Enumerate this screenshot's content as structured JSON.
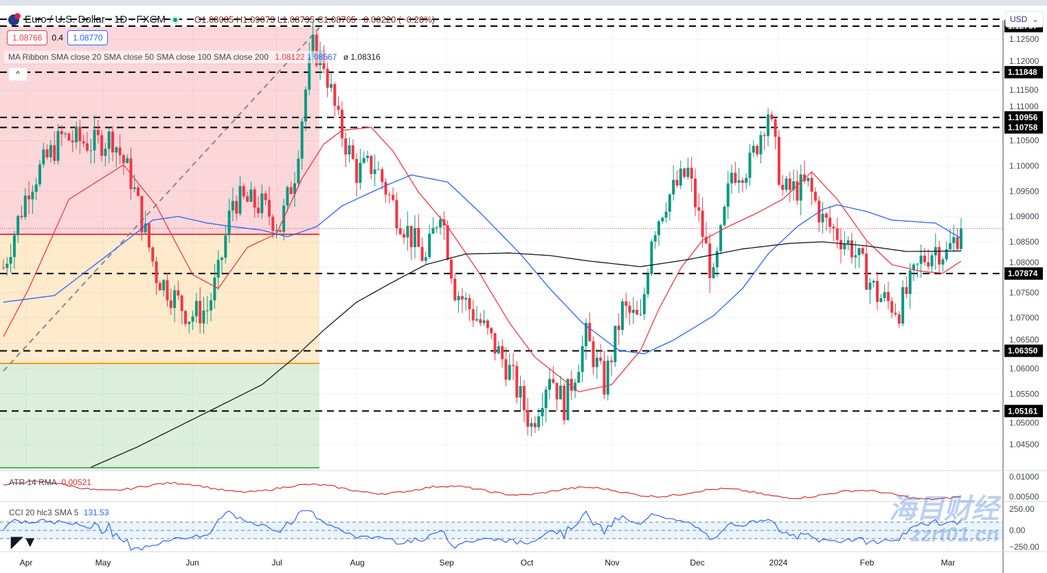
{
  "header": {
    "symbol": "Euro / U.S. Dollar · 1D · FXCM",
    "open": "O1.08985",
    "high": "H1.09073",
    "low": "L1.08735",
    "close": "C1.08765",
    "change": "−0.00220 (−0.20%)"
  },
  "order_boxes": {
    "sell": "1.08766",
    "spread": "0.4",
    "buy": "1.08770"
  },
  "ribbon": {
    "label": "MA Ribbon SMA close 20 SMA close 50 SMA close 100 SMA close 200",
    "v1": "1.08122",
    "v2": "1.08567",
    "v3": "ø 1.08316"
  },
  "currency": "USD",
  "atr": {
    "label": "ATR 14 RMA",
    "value": "0.00521"
  },
  "cci": {
    "label": "CCI 20 hlc3 SMA 5",
    "value": "131.53"
  },
  "watermark": {
    "line1": "海目财经",
    "line2": "zzrt01.cn"
  },
  "colors": {
    "up": "#089981",
    "down": "#f23645",
    "sma20": "#f23645",
    "sma50": "#2962ff",
    "sma200": "#131722"
  },
  "chart_data": {
    "type": "candlestick",
    "price_axis": {
      "min": 1.045,
      "max": 1.125,
      "ticks": [
        "1.12500",
        "1.12000",
        "1.11500",
        "1.11000",
        "1.10500",
        "1.10000",
        "1.09500",
        "1.09000",
        "1.08500",
        "1.08000",
        "1.07500",
        "1.07000",
        "1.06500",
        "1.06000",
        "1.05500",
        "1.05000",
        "1.04500"
      ]
    },
    "time_axis": [
      "Apr",
      "May",
      "Jun",
      "Jul",
      "Aug",
      "Sep",
      "Oct",
      "Nov",
      "Dec",
      "2024",
      "Feb",
      "Mar"
    ],
    "bars": 264,
    "last_price": 1.08765,
    "levels": [
      "1.12757",
      "1.11848",
      "1.10956",
      "1.10758",
      "1.07874",
      "1.06350",
      "1.05161"
    ],
    "fib_levels": [
      1.0865,
      1.061,
      1.0404
    ],
    "close_path": [
      [
        0,
        1.0799
      ],
      [
        7,
        1.0961
      ],
      [
        16,
        1.1056
      ],
      [
        25,
        1.1043
      ],
      [
        30,
        1.1056
      ],
      [
        35,
        1.0975
      ],
      [
        42,
        1.0785
      ],
      [
        51,
        1.0704
      ],
      [
        56,
        1.0717
      ],
      [
        59,
        1.0785
      ],
      [
        63,
        1.0934
      ],
      [
        71,
        1.0921
      ],
      [
        76,
        1.088
      ],
      [
        80,
        1.0988
      ],
      [
        83,
        1.1151
      ],
      [
        85,
        1.1232
      ],
      [
        88,
        1.1205
      ],
      [
        92,
        1.1083
      ],
      [
        97,
        1.0988
      ],
      [
        102,
        1.1002
      ],
      [
        108,
        1.0907
      ],
      [
        116,
        1.0812
      ],
      [
        120,
        1.0921
      ],
      [
        124,
        1.0758
      ],
      [
        131,
        1.069
      ],
      [
        139,
        1.0595
      ],
      [
        145,
        1.0487
      ],
      [
        150,
        1.0595
      ],
      [
        154,
        1.0527
      ],
      [
        160,
        1.0663
      ],
      [
        165,
        1.0568
      ],
      [
        170,
        1.0717
      ],
      [
        175,
        1.069
      ],
      [
        178,
        1.0866
      ],
      [
        182,
        1.0934
      ],
      [
        188,
        1.0988
      ],
      [
        192,
        1.0866
      ],
      [
        195,
        1.0771
      ],
      [
        200,
        1.0988
      ],
      [
        205,
        1.1002
      ],
      [
        210,
        1.111
      ],
      [
        214,
        1.0948
      ],
      [
        221,
        1.0961
      ],
      [
        225,
        1.0893
      ],
      [
        233,
        1.0839
      ],
      [
        240,
        1.0744
      ],
      [
        246,
        1.0717
      ],
      [
        252,
        1.0812
      ],
      [
        256,
        1.0839
      ],
      [
        259,
        1.0826
      ],
      [
        263,
        1.0877
      ]
    ],
    "sma20": [
      [
        0,
        1.0663
      ],
      [
        7,
        1.0758
      ],
      [
        18,
        1.0934
      ],
      [
        33,
        1.1002
      ],
      [
        42,
        1.0921
      ],
      [
        52,
        1.0785
      ],
      [
        59,
        1.0758
      ],
      [
        67,
        1.0839
      ],
      [
        75,
        1.0866
      ],
      [
        82,
        1.0975
      ],
      [
        88,
        1.1043
      ],
      [
        93,
        1.107
      ],
      [
        101,
        1.1076
      ],
      [
        107,
        1.1029
      ],
      [
        114,
        1.0948
      ],
      [
        122,
        1.088
      ],
      [
        131,
        1.0785
      ],
      [
        139,
        1.069
      ],
      [
        146,
        1.0622
      ],
      [
        158,
        1.0554
      ],
      [
        167,
        1.0568
      ],
      [
        175,
        1.0636
      ],
      [
        180,
        1.0717
      ],
      [
        186,
        1.0798
      ],
      [
        192,
        1.0853
      ],
      [
        199,
        1.088
      ],
      [
        207,
        1.0907
      ],
      [
        214,
        1.0934
      ],
      [
        222,
        1.0988
      ],
      [
        229,
        1.0934
      ],
      [
        237,
        1.0853
      ],
      [
        244,
        1.0805
      ],
      [
        252,
        1.0792
      ],
      [
        258,
        1.0788
      ],
      [
        263,
        1.0812
      ]
    ],
    "sma50": [
      [
        0,
        1.0731
      ],
      [
        14,
        1.0744
      ],
      [
        29,
        1.0826
      ],
      [
        41,
        1.0893
      ],
      [
        48,
        1.09
      ],
      [
        56,
        1.0887
      ],
      [
        63,
        1.088
      ],
      [
        71,
        1.0873
      ],
      [
        78,
        1.086
      ],
      [
        86,
        1.088
      ],
      [
        93,
        1.0921
      ],
      [
        105,
        1.0961
      ],
      [
        112,
        1.0982
      ],
      [
        122,
        1.0968
      ],
      [
        131,
        1.0907
      ],
      [
        142,
        1.0826
      ],
      [
        150,
        1.0758
      ],
      [
        159,
        1.069
      ],
      [
        169,
        1.0636
      ],
      [
        176,
        1.0629
      ],
      [
        184,
        1.0656
      ],
      [
        195,
        1.0704
      ],
      [
        203,
        1.0758
      ],
      [
        210,
        1.0826
      ],
      [
        218,
        1.088
      ],
      [
        225,
        1.0914
      ],
      [
        229,
        1.0923
      ],
      [
        237,
        1.091
      ],
      [
        244,
        1.0893
      ],
      [
        256,
        1.0887
      ],
      [
        263,
        1.0857
      ]
    ],
    "sma200": [
      [
        24,
        1.0405
      ],
      [
        37,
        1.0446
      ],
      [
        56,
        1.0514
      ],
      [
        71,
        1.0568
      ],
      [
        80,
        1.0622
      ],
      [
        88,
        1.0676
      ],
      [
        97,
        1.0731
      ],
      [
        107,
        1.0771
      ],
      [
        116,
        1.0805
      ],
      [
        127,
        1.0826
      ],
      [
        139,
        1.0828
      ],
      [
        150,
        1.0823
      ],
      [
        161,
        1.0812
      ],
      [
        175,
        1.0801
      ],
      [
        188,
        1.0815
      ],
      [
        203,
        1.0836
      ],
      [
        216,
        1.0847
      ],
      [
        225,
        1.085
      ],
      [
        237,
        1.0842
      ],
      [
        248,
        1.0831
      ],
      [
        263,
        1.0832
      ]
    ],
    "atr_axis": [
      "0.01000",
      "0.00500"
    ],
    "cci_axis": [
      "250.00",
      "0.00",
      "−250.00"
    ]
  }
}
